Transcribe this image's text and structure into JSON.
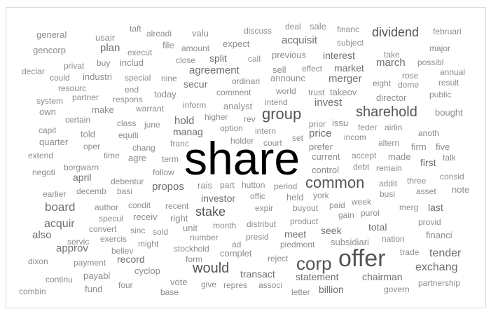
{
  "cloud": {
    "color_small": "#8c8c8c",
    "color_mid": "#6f6f6f",
    "color_big": "#555555",
    "color_top": "#000000",
    "words": [
      {
        "text": "share",
        "size": 66
      },
      {
        "text": "offer",
        "size": 34
      },
      {
        "text": "corp",
        "size": 26
      },
      {
        "text": "common",
        "size": 22
      },
      {
        "text": "group",
        "size": 22
      },
      {
        "text": "sharehold",
        "size": 20
      },
      {
        "text": "would",
        "size": 20
      },
      {
        "text": "stake",
        "size": 18
      },
      {
        "text": "dividend",
        "size": 18
      },
      {
        "text": "exchang",
        "size": 16
      },
      {
        "text": "tender",
        "size": 16
      },
      {
        "text": "board",
        "size": 17
      },
      {
        "text": "acquir",
        "size": 16
      },
      {
        "text": "price",
        "size": 15
      },
      {
        "text": "propos",
        "size": 15
      },
      {
        "text": "also",
        "size": 15
      },
      {
        "text": "approv",
        "size": 15
      },
      {
        "text": "plan",
        "size": 15
      },
      {
        "text": "invest",
        "size": 15
      },
      {
        "text": "merger",
        "size": 15
      },
      {
        "text": "acquisit",
        "size": 15
      },
      {
        "text": "agreement",
        "size": 15
      },
      {
        "text": "hold",
        "size": 15
      },
      {
        "text": "march",
        "size": 15
      },
      {
        "text": "split",
        "size": 14
      },
      {
        "text": "secur",
        "size": 14
      },
      {
        "text": "statement",
        "size": 14
      },
      {
        "text": "billion",
        "size": 14
      },
      {
        "text": "chairman",
        "size": 14
      },
      {
        "text": "meet",
        "size": 14
      },
      {
        "text": "total",
        "size": 14
      },
      {
        "text": "seek",
        "size": 14
      },
      {
        "text": "transact",
        "size": 14
      },
      {
        "text": "record",
        "size": 14
      },
      {
        "text": "manag",
        "size": 14
      },
      {
        "text": "investor",
        "size": 14
      },
      {
        "text": "interest",
        "size": 14
      },
      {
        "text": "market",
        "size": 14
      },
      {
        "text": "april",
        "size": 14
      },
      {
        "text": "first",
        "size": 14
      },
      {
        "text": "last",
        "size": 14
      },
      {
        "text": "firm",
        "size": 13
      },
      {
        "text": "control",
        "size": 13
      },
      {
        "text": "prefer",
        "size": 13
      },
      {
        "text": "current",
        "size": 13
      },
      {
        "text": "complet",
        "size": 13
      },
      {
        "text": "receiv",
        "size": 13
      },
      {
        "text": "right",
        "size": 13
      },
      {
        "text": "rais",
        "size": 13
      },
      {
        "text": "issu",
        "size": 13
      },
      {
        "text": "industri",
        "size": 13
      },
      {
        "text": "includ",
        "size": 13
      },
      {
        "text": "expect",
        "size": 13
      },
      {
        "text": "analyst",
        "size": 13
      },
      {
        "text": "announc",
        "size": 13
      },
      {
        "text": "previous",
        "size": 13
      },
      {
        "text": "takeov",
        "size": 13
      },
      {
        "text": "director",
        "size": 13
      },
      {
        "text": "general",
        "size": 13
      },
      {
        "text": "gencorp",
        "size": 13
      },
      {
        "text": "quarter",
        "size": 13
      },
      {
        "text": "cyclop",
        "size": 13
      },
      {
        "text": "vote",
        "size": 13
      },
      {
        "text": "today",
        "size": 13
      },
      {
        "text": "valu",
        "size": 13
      },
      {
        "text": "made",
        "size": 13
      },
      {
        "text": "bought",
        "size": 13
      },
      {
        "text": "make",
        "size": 13
      },
      {
        "text": "file",
        "size": 13
      },
      {
        "text": "sell",
        "size": 13
      },
      {
        "text": "sale",
        "size": 13
      },
      {
        "text": "agre",
        "size": 13
      },
      {
        "text": "financi",
        "size": 13
      },
      {
        "text": "note",
        "size": 13
      },
      {
        "text": "five",
        "size": 13
      },
      {
        "text": "unit",
        "size": 13
      },
      {
        "text": "subsidiari",
        "size": 13
      },
      {
        "text": "held",
        "size": 13
      },
      {
        "text": "fund",
        "size": 13
      },
      {
        "text": "four",
        "size": 12
      },
      {
        "text": "usair",
        "size": 13
      },
      {
        "text": "told",
        "size": 13
      },
      {
        "text": "dixon",
        "size": 12
      },
      {
        "text": "continu",
        "size": 12
      },
      {
        "text": "combin",
        "size": 12
      },
      {
        "text": "payabl",
        "size": 13
      },
      {
        "text": "payment",
        "size": 12
      },
      {
        "text": "partnership",
        "size": 12
      },
      {
        "text": "govern",
        "size": 12
      },
      {
        "text": "letter",
        "size": 12
      },
      {
        "text": "associ",
        "size": 12
      },
      {
        "text": "give",
        "size": 12
      },
      {
        "text": "repres",
        "size": 12
      },
      {
        "text": "base",
        "size": 12
      },
      {
        "text": "form",
        "size": 12
      },
      {
        "text": "reject",
        "size": 12
      },
      {
        "text": "trade",
        "size": 12
      },
      {
        "text": "nation",
        "size": 12
      },
      {
        "text": "provid",
        "size": 12
      },
      {
        "text": "piedmont",
        "size": 12
      },
      {
        "text": "product",
        "size": 12
      },
      {
        "text": "presid",
        "size": 12
      },
      {
        "text": "ad",
        "size": 12
      },
      {
        "text": "stockhold",
        "size": 12
      },
      {
        "text": "number",
        "size": 12
      },
      {
        "text": "believ",
        "size": 12
      },
      {
        "text": "might",
        "size": 12
      },
      {
        "text": "servic",
        "size": 12
      },
      {
        "text": "exercis",
        "size": 12
      },
      {
        "text": "sold",
        "size": 12
      },
      {
        "text": "convert",
        "size": 12
      },
      {
        "text": "sinc",
        "size": 12
      },
      {
        "text": "month",
        "size": 12
      },
      {
        "text": "distribut",
        "size": 12
      },
      {
        "text": "purol",
        "size": 12
      },
      {
        "text": "gain",
        "size": 12
      },
      {
        "text": "merg",
        "size": 12
      },
      {
        "text": "paid",
        "size": 12
      },
      {
        "text": "buyout",
        "size": 12
      },
      {
        "text": "expir",
        "size": 12
      },
      {
        "text": "specul",
        "size": 12
      },
      {
        "text": "author",
        "size": 12
      },
      {
        "text": "condit",
        "size": 12
      },
      {
        "text": "recent",
        "size": 12
      },
      {
        "text": "offic",
        "size": 12
      },
      {
        "text": "york",
        "size": 12
      },
      {
        "text": "asset",
        "size": 12
      },
      {
        "text": "busi",
        "size": 12
      },
      {
        "text": "consid",
        "size": 12
      },
      {
        "text": "addit",
        "size": 12
      },
      {
        "text": "three",
        "size": 12
      },
      {
        "text": "week",
        "size": 12
      },
      {
        "text": "period",
        "size": 12
      },
      {
        "text": "hutton",
        "size": 12
      },
      {
        "text": "part",
        "size": 12
      },
      {
        "text": "follow",
        "size": 12
      },
      {
        "text": "earlier",
        "size": 12
      },
      {
        "text": "decemb",
        "size": 12
      },
      {
        "text": "basi",
        "size": 12
      },
      {
        "text": "debentur",
        "size": 12
      },
      {
        "text": "negoti",
        "size": 12
      },
      {
        "text": "borgwarn",
        "size": 12
      },
      {
        "text": "term",
        "size": 12
      },
      {
        "text": "remain",
        "size": 12
      },
      {
        "text": "debt",
        "size": 12
      },
      {
        "text": "accept",
        "size": 12
      },
      {
        "text": "talk",
        "size": 12
      },
      {
        "text": "altern",
        "size": 12
      },
      {
        "text": "incom",
        "size": 12
      },
      {
        "text": "set",
        "size": 12
      },
      {
        "text": "court",
        "size": 12
      },
      {
        "text": "holder",
        "size": 12
      },
      {
        "text": "extend",
        "size": 12
      },
      {
        "text": "time",
        "size": 12
      },
      {
        "text": "chang",
        "size": 12
      },
      {
        "text": "franc",
        "size": 12
      },
      {
        "text": "oper",
        "size": 12
      },
      {
        "text": "equiti",
        "size": 12
      },
      {
        "text": "capit",
        "size": 12
      },
      {
        "text": "class",
        "size": 12
      },
      {
        "text": "june",
        "size": 12
      },
      {
        "text": "option",
        "size": 12
      },
      {
        "text": "intern",
        "size": 12
      },
      {
        "text": "feder",
        "size": 12
      },
      {
        "text": "airlin",
        "size": 12
      },
      {
        "text": "anoth",
        "size": 12
      },
      {
        "text": "prior",
        "size": 12
      },
      {
        "text": "certain",
        "size": 12
      },
      {
        "text": "higher",
        "size": 12
      },
      {
        "text": "rev",
        "size": 12
      },
      {
        "text": "own",
        "size": 13
      },
      {
        "text": "warrant",
        "size": 12
      },
      {
        "text": "inform",
        "size": 12
      },
      {
        "text": "intend",
        "size": 12
      },
      {
        "text": "system",
        "size": 12
      },
      {
        "text": "respons",
        "size": 12
      },
      {
        "text": "comment",
        "size": 12
      },
      {
        "text": "trust",
        "size": 12
      },
      {
        "text": "public",
        "size": 12
      },
      {
        "text": "result",
        "size": 12
      },
      {
        "text": "dome",
        "size": 12
      },
      {
        "text": "eight",
        "size": 12
      },
      {
        "text": "resourc",
        "size": 12
      },
      {
        "text": "partner",
        "size": 12
      },
      {
        "text": "end",
        "size": 12
      },
      {
        "text": "ordinari",
        "size": 12
      },
      {
        "text": "world",
        "size": 12
      },
      {
        "text": "rose",
        "size": 12
      },
      {
        "text": "annual",
        "size": 12
      },
      {
        "text": "could",
        "size": 12
      },
      {
        "text": "special",
        "size": 12
      },
      {
        "text": "nine",
        "size": 12
      },
      {
        "text": "effect",
        "size": 12
      },
      {
        "text": "declar",
        "size": 12
      },
      {
        "text": "buy",
        "size": 12
      },
      {
        "text": "privat",
        "size": 12
      },
      {
        "text": "close",
        "size": 12
      },
      {
        "text": "call",
        "size": 12
      },
      {
        "text": "possibl",
        "size": 12
      },
      {
        "text": "take",
        "size": 12
      },
      {
        "text": "execut",
        "size": 12
      },
      {
        "text": "amount",
        "size": 12
      },
      {
        "text": "subject",
        "size": 12
      },
      {
        "text": "major",
        "size": 12
      },
      {
        "text": "alreadi",
        "size": 12
      },
      {
        "text": "taft",
        "size": 12
      },
      {
        "text": "discuss",
        "size": 12
      },
      {
        "text": "deal",
        "size": 12
      },
      {
        "text": "financ",
        "size": 12
      },
      {
        "text": "februari",
        "size": 12
      }
    ]
  }
}
